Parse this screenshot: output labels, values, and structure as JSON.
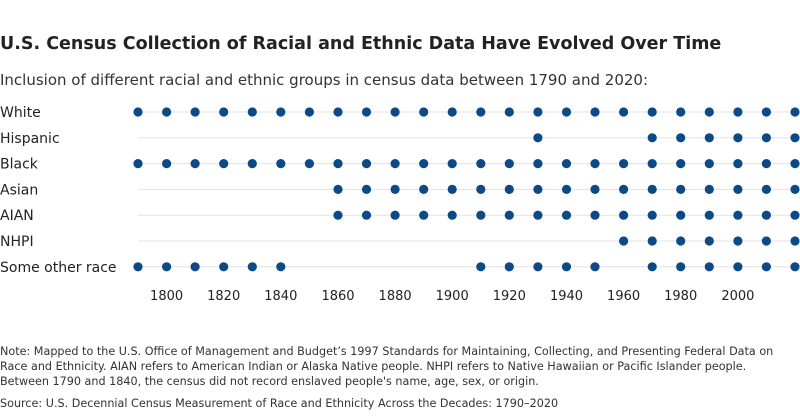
{
  "chart_data": {
    "type": "scatter",
    "title": "U.S. Census Collection of Racial and Ethnic Data Have Evolved Over Time",
    "subtitle": "Inclusion of different racial and ethnic groups in census data between 1790 and 2020:",
    "x": [
      1790,
      1800,
      1810,
      1820,
      1830,
      1840,
      1850,
      1860,
      1870,
      1880,
      1890,
      1900,
      1910,
      1920,
      1930,
      1940,
      1950,
      1960,
      1970,
      1980,
      1990,
      2000,
      2010,
      2020
    ],
    "xlim": [
      1790,
      2020
    ],
    "xticks": [
      1800,
      1820,
      1840,
      1860,
      1880,
      1900,
      1920,
      1940,
      1960,
      1980,
      2000
    ],
    "series": [
      {
        "name": "White",
        "years": [
          1790,
          1800,
          1810,
          1820,
          1830,
          1840,
          1850,
          1860,
          1870,
          1880,
          1890,
          1900,
          1910,
          1920,
          1930,
          1940,
          1950,
          1960,
          1970,
          1980,
          1990,
          2000,
          2010,
          2020
        ]
      },
      {
        "name": "Hispanic",
        "years": [
          1930,
          1970,
          1980,
          1990,
          2000,
          2010,
          2020
        ]
      },
      {
        "name": "Black",
        "years": [
          1790,
          1800,
          1810,
          1820,
          1830,
          1840,
          1850,
          1860,
          1870,
          1880,
          1890,
          1900,
          1910,
          1920,
          1930,
          1940,
          1950,
          1960,
          1970,
          1980,
          1990,
          2000,
          2010,
          2020
        ]
      },
      {
        "name": "Asian",
        "years": [
          1860,
          1870,
          1880,
          1890,
          1900,
          1910,
          1920,
          1930,
          1940,
          1950,
          1960,
          1970,
          1980,
          1990,
          2000,
          2010,
          2020
        ]
      },
      {
        "name": "AIAN",
        "years": [
          1860,
          1870,
          1880,
          1890,
          1900,
          1910,
          1920,
          1930,
          1940,
          1950,
          1960,
          1970,
          1980,
          1990,
          2000,
          2010,
          2020
        ]
      },
      {
        "name": "NHPI",
        "years": [
          1960,
          1970,
          1980,
          1990,
          2000,
          2010,
          2020
        ]
      },
      {
        "name": "Some other race",
        "years": [
          1790,
          1800,
          1810,
          1820,
          1830,
          1840,
          1910,
          1920,
          1930,
          1940,
          1950,
          1970,
          1980,
          1990,
          2000,
          2010,
          2020
        ]
      }
    ],
    "colors": {
      "dot": "#0b4a87",
      "gridline": "#e3e3e3"
    }
  },
  "footer": {
    "note": "Note: Mapped to the U.S. Office of Management and Budget’s 1997 Standards for Maintaining, Collecting, and Presenting Federal Data on Race and Ethnicity. AIAN refers to American Indian or Alaska Native people. NHPI refers to Native Hawaiian or Pacific Islander people. Between 1790 and 1840, the census did not record enslaved people's name, age, sex, or origin.",
    "source": "Source: U.S. Decennial Census Measurement of Race and Ethnicity Across the Decades: 1790–2020"
  }
}
